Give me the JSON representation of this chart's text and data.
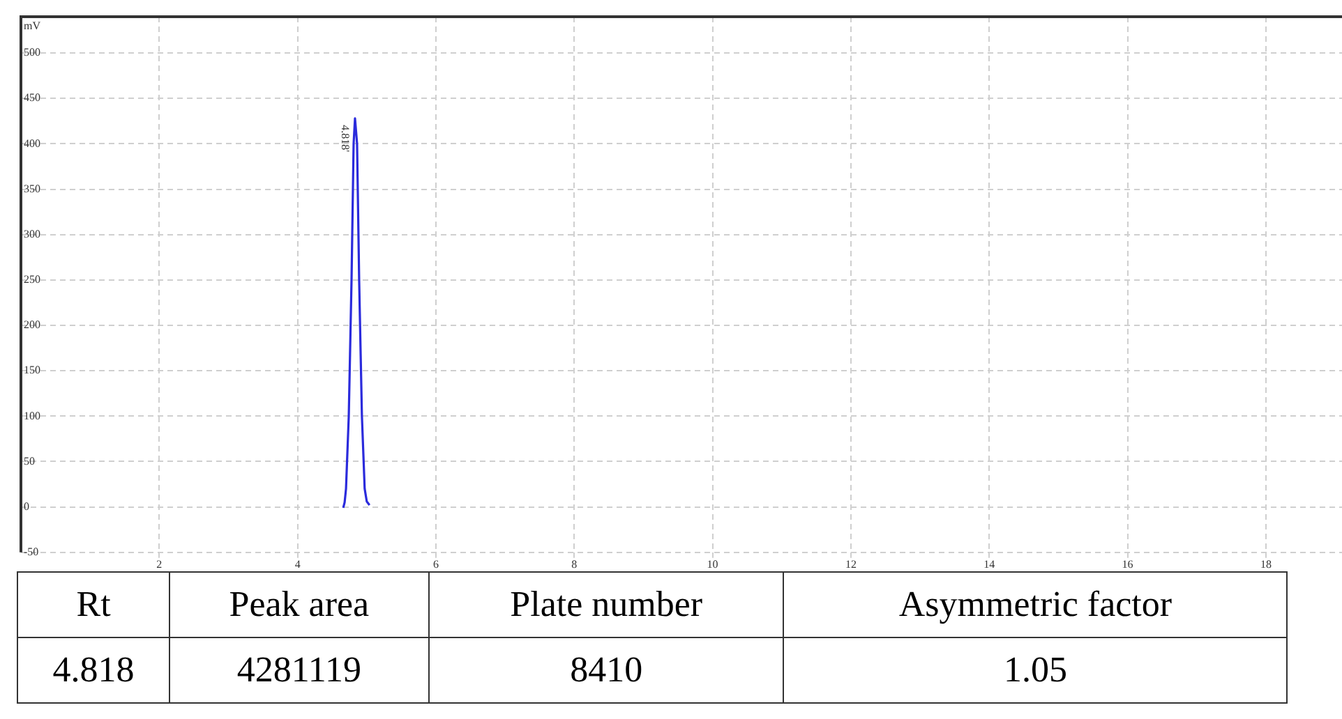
{
  "chart_data": {
    "type": "line",
    "ylabel": "mV",
    "series": [
      {
        "color": "#2b2bdc",
        "x": [
          4.66,
          4.68,
          4.7,
          4.74,
          4.78,
          4.81,
          4.83,
          4.86,
          4.89,
          4.93,
          4.97,
          5.0,
          5.04
        ],
        "values": [
          -1,
          5,
          20,
          100,
          250,
          400,
          428,
          400,
          250,
          100,
          20,
          6,
          2
        ]
      }
    ],
    "xlim": [
      0,
      19.1
    ],
    "xticks": [
      2,
      4,
      6,
      8,
      10,
      12,
      14,
      16,
      18
    ],
    "ylim": [
      -50,
      540
    ],
    "yticks": [
      -50,
      0,
      50,
      100,
      150,
      200,
      250,
      300,
      350,
      400,
      450,
      500
    ],
    "grid": true,
    "marker": "none",
    "legend": false,
    "annotations": [
      {
        "text": "4.818'",
        "x": 4.818,
        "y": 427
      },
      "Rt",
      "Peak area",
      "Plate number",
      "Asymmetric factor",
      "4.818",
      "4281119",
      "8410",
      "1.05"
    ]
  }
}
